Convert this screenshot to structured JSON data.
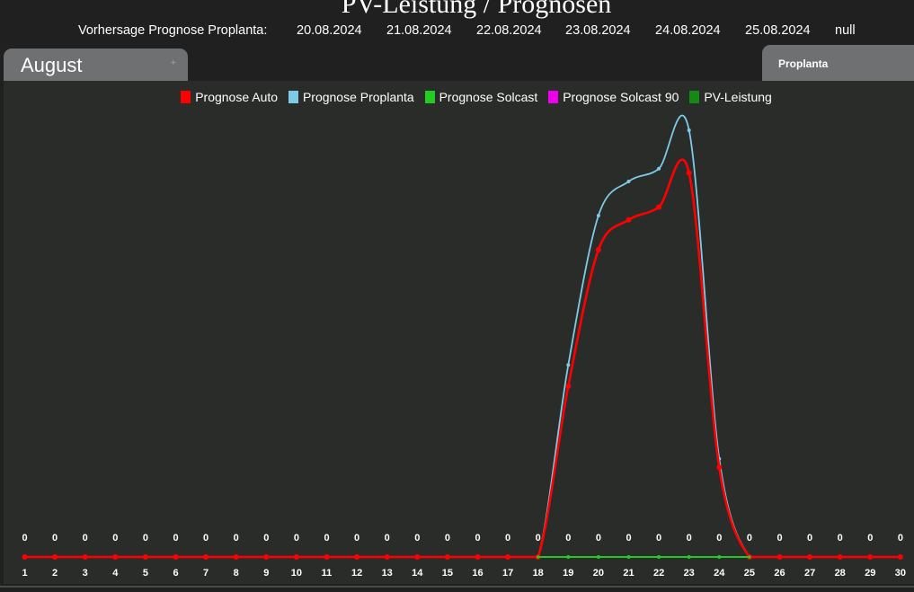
{
  "header": {
    "title": "PV-Leistung / Prognosen"
  },
  "forecast": {
    "label": "Vorhersage Prognose Proplanta:",
    "dates": [
      "20.08.2024",
      "21.08.2024",
      "22.08.2024",
      "23.08.2024",
      "24.08.2024",
      "25.08.2024",
      "null"
    ]
  },
  "tabs": {
    "month": "August",
    "source": "Proplanta"
  },
  "colors": {
    "background": "#1f201f",
    "panel": "#2a2c2a",
    "tab": "#6f7071"
  },
  "chart_data": {
    "type": "line",
    "title": "PV-Leistung / Prognosen",
    "xlabel": "",
    "ylabel": "",
    "grid": false,
    "legend_position": "top-center",
    "x": [
      1,
      2,
      3,
      4,
      5,
      6,
      7,
      8,
      9,
      10,
      11,
      12,
      13,
      14,
      15,
      16,
      17,
      18,
      19,
      20,
      21,
      22,
      23,
      24,
      25,
      26,
      27,
      28,
      29,
      30
    ],
    "ylim": [
      0,
      50
    ],
    "series": [
      {
        "name": "Prognose Auto",
        "color": "#ff0000",
        "values": [
          0,
          0,
          0,
          0,
          0,
          0,
          0,
          0,
          0,
          0,
          0,
          0,
          0,
          0,
          0,
          0,
          0,
          0,
          20,
          36,
          39.5,
          41,
          45,
          10.5,
          0,
          0,
          0,
          0,
          0,
          0
        ]
      },
      {
        "name": "Prognose Proplanta",
        "color": "#7ecbe8",
        "values": [
          0,
          0,
          0,
          0,
          0,
          0,
          0,
          0,
          0,
          0,
          0,
          0,
          0,
          0,
          0,
          0,
          0,
          0,
          22.5,
          40,
          44,
          45.5,
          50,
          11.5,
          0,
          0,
          0,
          0,
          0,
          0
        ]
      },
      {
        "name": "Prognose Solcast",
        "color": "#22cc22",
        "values": [
          0,
          0,
          0,
          0,
          0,
          0,
          0,
          0,
          0,
          0,
          0,
          0,
          0,
          0,
          0,
          0,
          0,
          0,
          0,
          0,
          0,
          0,
          0,
          0,
          0,
          0,
          0,
          0,
          0,
          0
        ]
      },
      {
        "name": "Prognose Solcast 90",
        "color": "#ee00ee",
        "values": [
          0,
          0,
          0,
          0,
          0,
          0,
          0,
          0,
          0,
          0,
          0,
          0,
          0,
          0,
          0,
          0,
          0,
          0,
          0,
          0,
          0,
          0,
          0,
          0,
          0,
          0,
          0,
          0,
          0,
          0
        ]
      },
      {
        "name": "PV-Leistung",
        "color": "#138a13",
        "values": [
          0,
          0,
          0,
          0,
          0,
          0,
          0,
          0,
          0,
          0,
          0,
          0,
          0,
          0,
          0,
          0,
          0,
          0,
          0,
          0,
          0,
          0,
          0,
          0,
          0,
          0,
          0,
          0,
          0,
          0
        ]
      }
    ],
    "data_labels": {
      "series": "PV-Leistung",
      "values": [
        0,
        0,
        0,
        0,
        0,
        0,
        0,
        0,
        0,
        0,
        0,
        0,
        0,
        0,
        0,
        0,
        0,
        0,
        0,
        0,
        0,
        0,
        0,
        0,
        0,
        0,
        0,
        0,
        0,
        0
      ]
    }
  }
}
